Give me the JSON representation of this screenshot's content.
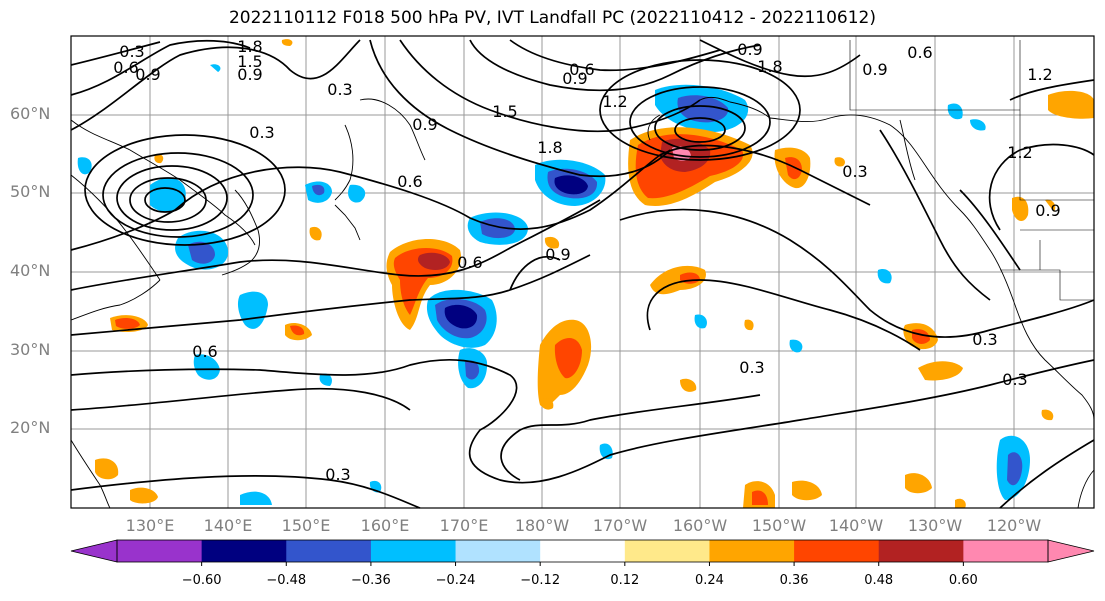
{
  "title": "2022110112 F018 500 hPa PV, IVT Landfall PC (2022110412 - 2022110612)",
  "lat_labels": [
    "60°N",
    "50°N",
    "40°N",
    "30°N",
    "20°N"
  ],
  "lon_labels": [
    "130°E",
    "140°E",
    "150°E",
    "160°E",
    "170°E",
    "180°W",
    "170°W",
    "160°W",
    "150°W",
    "140°W",
    "130°W",
    "120°W"
  ],
  "colorbar": {
    "ticks": [
      "−0.60",
      "−0.48",
      "−0.36",
      "−0.24",
      "−0.12",
      "0.12",
      "0.24",
      "0.36",
      "0.48",
      "0.60"
    ],
    "colors": [
      "#9933cc",
      "#000080",
      "#3355cc",
      "#00bfff",
      "#b0e2ff",
      "#ffffff",
      "#ffe98a",
      "#ffa500",
      "#ff4500",
      "#b22222",
      "#ff88b0"
    ]
  },
  "contour_labels": [
    "0.3",
    "0.6",
    "0.9",
    "1.2",
    "1.5",
    "1.8"
  ],
  "map_labels": [
    {
      "text": "0.3"
    },
    {
      "text": "0.6"
    },
    {
      "text": "0.9"
    },
    {
      "text": "1.8"
    },
    {
      "text": "1.5"
    },
    {
      "text": "0.9"
    },
    {
      "text": "0.3"
    },
    {
      "text": "0.3"
    },
    {
      "text": "0.9"
    },
    {
      "text": "1.5"
    },
    {
      "text": "1.8"
    },
    {
      "text": "0.6"
    },
    {
      "text": "0.6"
    },
    {
      "text": "0.9"
    },
    {
      "text": "0.9"
    },
    {
      "text": "1.8"
    },
    {
      "text": "1.2"
    },
    {
      "text": "1.2"
    },
    {
      "text": "0.6"
    },
    {
      "text": "0.9"
    },
    {
      "text": "1.2"
    },
    {
      "text": "0.9"
    },
    {
      "text": "0.3"
    },
    {
      "text": "0.3"
    },
    {
      "text": "0.3"
    },
    {
      "text": "0.3"
    },
    {
      "text": "0.3"
    },
    {
      "text": "0.6"
    },
    {
      "text": "0.6"
    },
    {
      "text": "0.9"
    }
  ]
}
